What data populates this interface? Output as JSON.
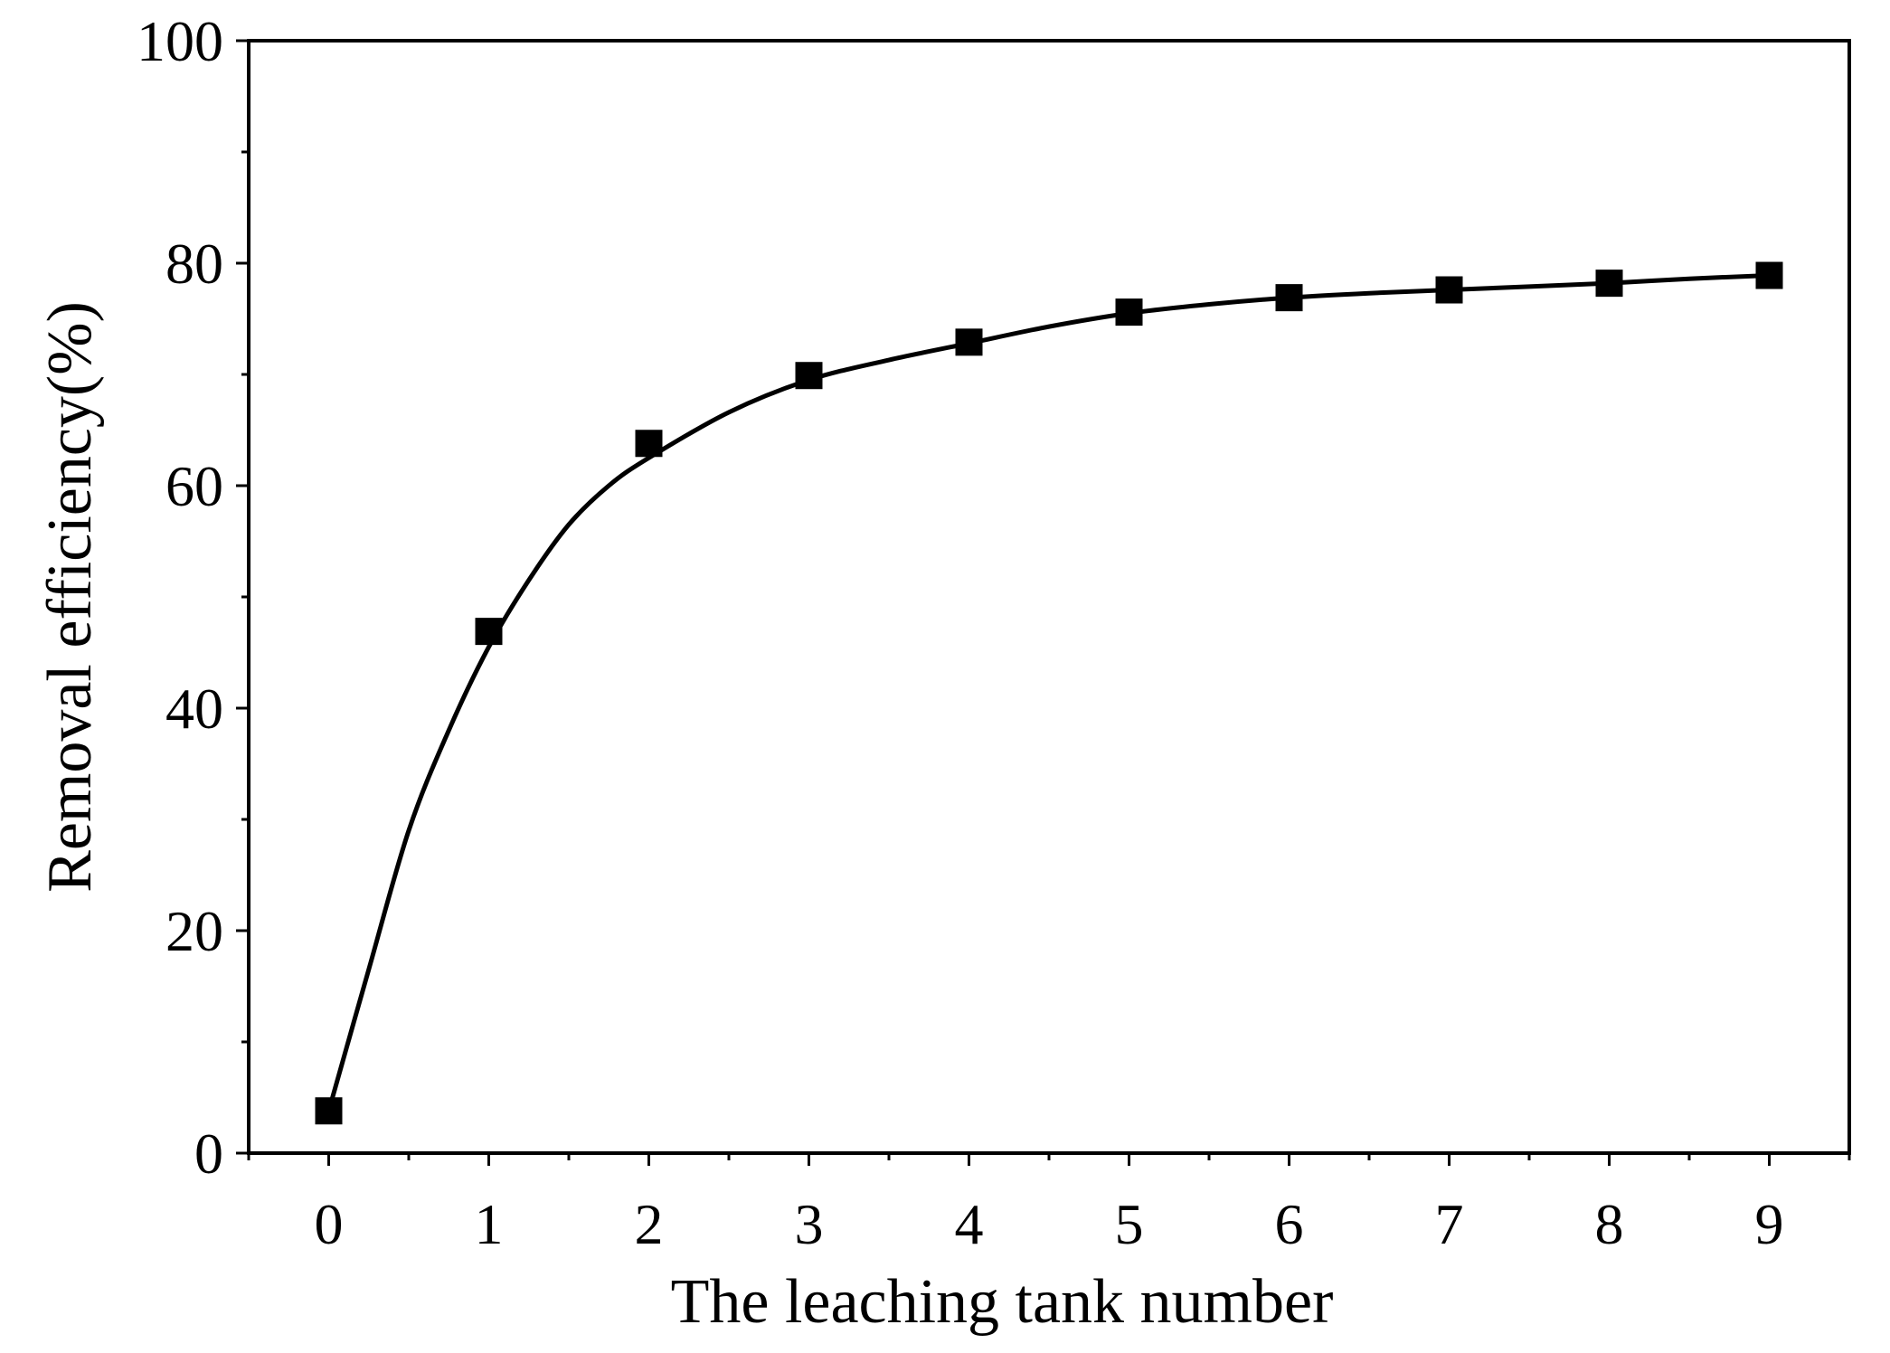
{
  "chart_data": {
    "type": "scatter",
    "xlabel": "The leaching tank number",
    "ylabel": "Removal efficiency(%)",
    "xlim": [
      -0.5,
      9.5
    ],
    "ylim": [
      0,
      100
    ],
    "x_ticks": [
      0,
      1,
      2,
      3,
      4,
      5,
      6,
      7,
      8,
      9
    ],
    "y_ticks": [
      0,
      20,
      40,
      60,
      80,
      100
    ],
    "grid": false,
    "legend": "none",
    "series": [
      {
        "marker": "square",
        "line": "smooth fit curve",
        "color": "#000000",
        "x": [
          0,
          1,
          2,
          3,
          4,
          5,
          6,
          7,
          8,
          9
        ],
        "y": [
          3.8,
          46.9,
          63.8,
          69.9,
          72.9,
          75.6,
          76.9,
          77.6,
          78.2,
          78.9
        ]
      }
    ],
    "fit_curve": {
      "x": [
        0,
        0.25,
        0.5,
        0.75,
        1,
        1.25,
        1.5,
        1.75,
        2,
        2.5,
        3,
        3.5,
        4,
        4.5,
        5,
        5.5,
        6,
        6.5,
        7,
        7.5,
        8,
        8.5,
        9
      ],
      "y": [
        3.8,
        16.5,
        29.0,
        38.0,
        45.5,
        51.5,
        56.5,
        60.0,
        62.5,
        66.6,
        69.5,
        71.3,
        72.8,
        74.3,
        75.5,
        76.3,
        76.9,
        77.3,
        77.6,
        77.9,
        78.2,
        78.6,
        78.9
      ]
    }
  }
}
